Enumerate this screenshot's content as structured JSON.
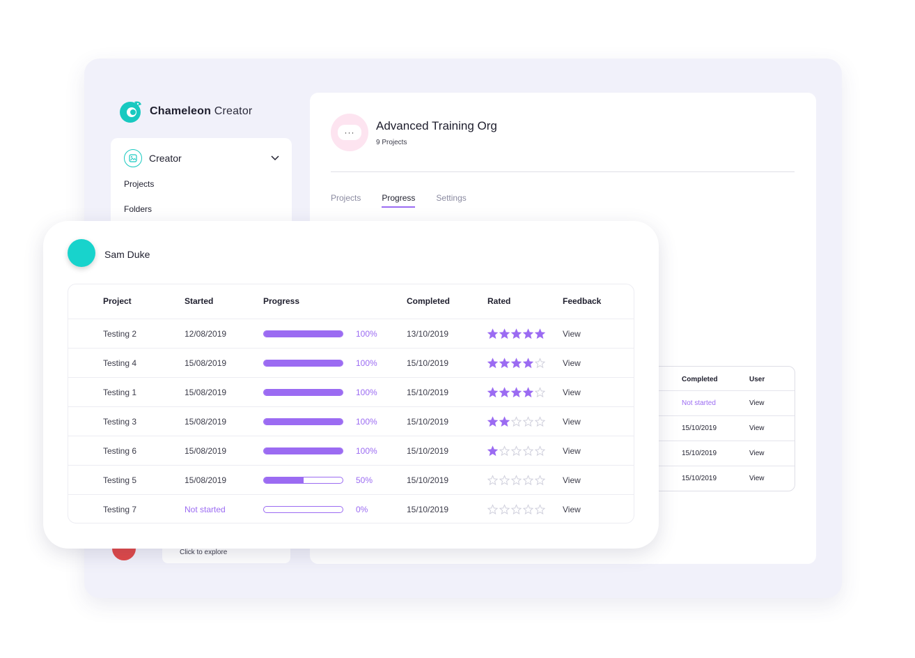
{
  "app": {
    "brand_bold": "Chameleon",
    "brand_rest": " Creator",
    "accent": "#9b6bf2",
    "brand_color": "#18c9c0"
  },
  "sidebar": {
    "section_label": "Creator",
    "items": [
      "Projects",
      "Folders"
    ],
    "explore_label": "Click to explore"
  },
  "org": {
    "title": "Advanced Training Org",
    "subtitle": "9 Projects",
    "tabs": [
      {
        "label": "Projects",
        "active": false
      },
      {
        "label": "Progress",
        "active": true
      },
      {
        "label": "Settings",
        "active": false
      }
    ]
  },
  "background_table": {
    "headers": [
      "Completed",
      "User"
    ],
    "rows": [
      {
        "completed": "Not started",
        "user": "View"
      },
      {
        "completed": "15/10/2019",
        "user": "View"
      },
      {
        "completed": "15/10/2019",
        "user": "View"
      },
      {
        "completed": "15/10/2019",
        "user": "View"
      }
    ]
  },
  "user": {
    "name": "Sam Duke"
  },
  "progress_table": {
    "headers": {
      "project": "Project",
      "started": "Started",
      "progress": "Progress",
      "completed": "Completed",
      "rated": "Rated",
      "feedback": "Feedback"
    },
    "rows": [
      {
        "project": "Testing 2",
        "started": "12/08/2019",
        "progress": 100,
        "progress_label": "100%",
        "completed": "13/10/2019",
        "rating": 5,
        "feedback": "View"
      },
      {
        "project": "Testing 4",
        "started": "15/08/2019",
        "progress": 100,
        "progress_label": "100%",
        "completed": "15/10/2019",
        "rating": 4,
        "feedback": "View"
      },
      {
        "project": "Testing 1",
        "started": "15/08/2019",
        "progress": 100,
        "progress_label": "100%",
        "completed": "15/10/2019",
        "rating": 4,
        "feedback": "View"
      },
      {
        "project": "Testing 3",
        "started": "15/08/2019",
        "progress": 100,
        "progress_label": "100%",
        "completed": "15/10/2019",
        "rating": 2,
        "feedback": "View"
      },
      {
        "project": "Testing 6",
        "started": "15/08/2019",
        "progress": 100,
        "progress_label": "100%",
        "completed": "15/10/2019",
        "rating": 1,
        "feedback": "View"
      },
      {
        "project": "Testing 5",
        "started": "15/08/2019",
        "progress": 50,
        "progress_label": "50%",
        "completed": "15/10/2019",
        "rating": 0,
        "feedback": "View"
      },
      {
        "project": "Testing 7",
        "started": "Not started",
        "progress": 0,
        "progress_label": "0%",
        "completed": "15/10/2019",
        "rating": 0,
        "feedback": "View"
      }
    ]
  }
}
